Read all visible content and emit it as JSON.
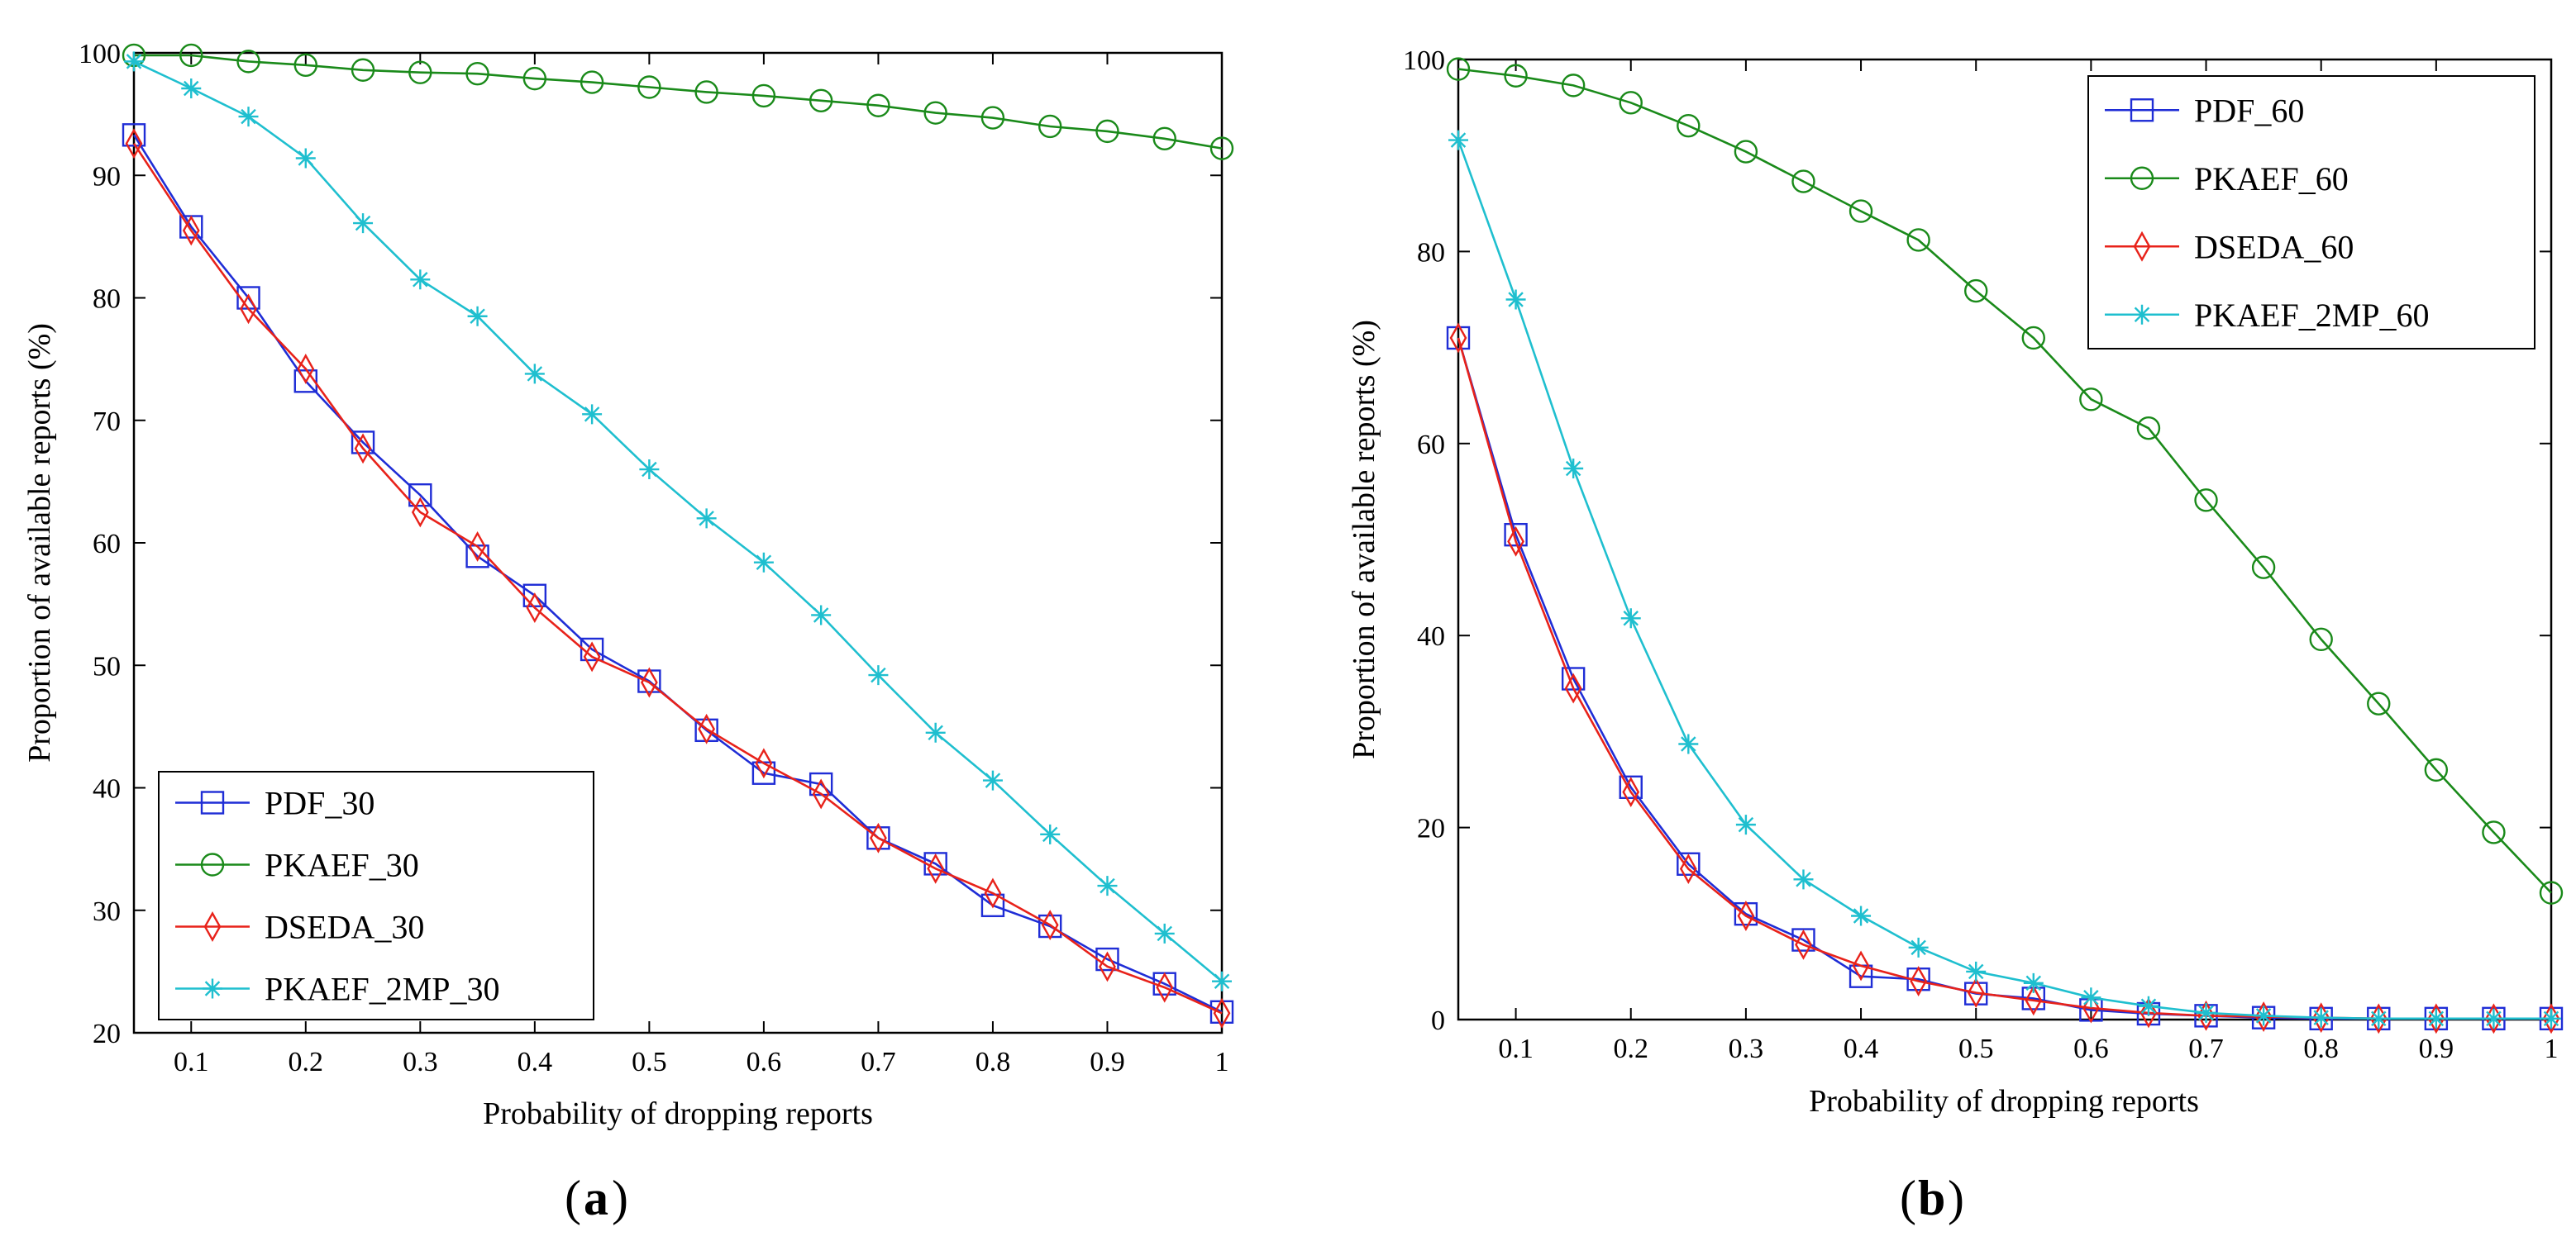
{
  "chart_data": [
    {
      "panel_label": "a",
      "type": "line",
      "xlabel": "Probability of dropping reports",
      "ylabel": "Proportion of available reports (%)",
      "xlim": [
        0.05,
        1
      ],
      "ylim": [
        20,
        100
      ],
      "xticks": [
        0.1,
        0.2,
        0.3,
        0.4,
        0.5,
        0.6,
        0.7,
        0.8,
        0.9,
        1
      ],
      "xtick_labels": [
        "0.1",
        "0.2",
        "0.3",
        "0.4",
        "0.5",
        "0.6",
        "0.7",
        "0.8",
        "0.9",
        "1"
      ],
      "yticks": [
        20,
        30,
        40,
        50,
        60,
        70,
        80,
        90,
        100
      ],
      "ytick_labels": [
        "20",
        "30",
        "40",
        "50",
        "60",
        "70",
        "80",
        "90",
        "100"
      ],
      "legend_position": "bottom-left",
      "x": [
        0.05,
        0.1,
        0.15,
        0.2,
        0.25,
        0.3,
        0.35,
        0.4,
        0.45,
        0.5,
        0.55,
        0.6,
        0.65,
        0.7,
        0.75,
        0.8,
        0.85,
        0.9,
        0.95,
        1
      ],
      "series": [
        {
          "name": "PDF_30",
          "color": "#1f2dd6",
          "marker": "square",
          "values": [
            93.3,
            85.8,
            80.0,
            73.2,
            68.2,
            63.9,
            58.9,
            55.7,
            51.3,
            48.7,
            44.7,
            41.2,
            40.3,
            35.9,
            33.8,
            30.4,
            28.7,
            26.0,
            24.0,
            21.7
          ]
        },
        {
          "name": "PKAEF_30",
          "color": "#1a8a1a",
          "marker": "circle",
          "values": [
            99.8,
            99.8,
            99.3,
            99.0,
            98.6,
            98.4,
            98.3,
            97.9,
            97.6,
            97.2,
            96.8,
            96.5,
            96.1,
            95.7,
            95.1,
            94.7,
            94.0,
            93.6,
            93.0,
            92.2
          ]
        },
        {
          "name": "DSEDA_30",
          "color": "#e8221a",
          "marker": "diamond",
          "values": [
            92.6,
            85.5,
            79.1,
            74.2,
            67.7,
            62.5,
            59.7,
            54.7,
            50.7,
            48.6,
            44.8,
            42.0,
            39.5,
            35.9,
            33.4,
            31.4,
            28.8,
            25.4,
            23.7,
            21.6
          ]
        },
        {
          "name": "PKAEF_2MP_30",
          "color": "#1fbfcf",
          "marker": "star",
          "values": [
            99.3,
            97.1,
            94.8,
            91.4,
            86.1,
            81.5,
            78.5,
            73.8,
            70.5,
            66.0,
            62.0,
            58.4,
            54.1,
            49.2,
            44.5,
            40.6,
            36.2,
            32.0,
            28.1,
            24.2
          ]
        }
      ]
    },
    {
      "panel_label": "b",
      "type": "line",
      "xlabel": "Probability of dropping reports",
      "ylabel": "Proportion of available reports (%)",
      "xlim": [
        0.05,
        1
      ],
      "ylim": [
        0,
        100
      ],
      "xticks": [
        0.1,
        0.2,
        0.3,
        0.4,
        0.5,
        0.6,
        0.7,
        0.8,
        0.9,
        1
      ],
      "xtick_labels": [
        "0.1",
        "0.2",
        "0.3",
        "0.4",
        "0.5",
        "0.6",
        "0.7",
        "0.8",
        "0.9",
        "1"
      ],
      "yticks": [
        0,
        20,
        40,
        60,
        80,
        100
      ],
      "ytick_labels": [
        "0",
        "20",
        "40",
        "60",
        "80",
        "100"
      ],
      "legend_position": "top-right",
      "x": [
        0.05,
        0.1,
        0.15,
        0.2,
        0.25,
        0.3,
        0.35,
        0.4,
        0.45,
        0.5,
        0.55,
        0.6,
        0.65,
        0.7,
        0.75,
        0.8,
        0.85,
        0.9,
        0.95,
        1
      ],
      "series": [
        {
          "name": "PDF_60",
          "color": "#1f2dd6",
          "marker": "square",
          "values": [
            71.0,
            50.5,
            35.5,
            24.2,
            16.2,
            11.0,
            8.3,
            4.5,
            4.2,
            2.7,
            2.2,
            1.0,
            0.6,
            0.4,
            0.2,
            0.1,
            0.1,
            0.1,
            0.1,
            0.1
          ]
        },
        {
          "name": "PKAEF_60",
          "color": "#1a8a1a",
          "marker": "circle",
          "values": [
            99.0,
            98.3,
            97.3,
            95.5,
            93.1,
            90.4,
            87.3,
            84.2,
            81.2,
            75.9,
            71.0,
            64.6,
            61.6,
            54.1,
            47.1,
            39.6,
            32.9,
            26.0,
            19.5,
            13.2
          ]
        },
        {
          "name": "DSEDA_60",
          "color": "#e8221a",
          "marker": "diamond",
          "values": [
            71.0,
            49.8,
            34.5,
            23.7,
            15.7,
            10.8,
            7.8,
            5.6,
            4.0,
            2.8,
            2.0,
            1.2,
            0.7,
            0.4,
            0.3,
            0.2,
            0.1,
            0.1,
            0.1,
            0.1
          ]
        },
        {
          "name": "PKAEF_2MP_60",
          "color": "#1fbfcf",
          "marker": "star",
          "values": [
            91.6,
            75.0,
            57.4,
            41.8,
            28.7,
            20.3,
            14.6,
            10.8,
            7.5,
            5.0,
            3.8,
            2.3,
            1.4,
            0.7,
            0.4,
            0.2,
            0.1,
            0.1,
            0.1,
            0.1
          ]
        }
      ]
    }
  ]
}
